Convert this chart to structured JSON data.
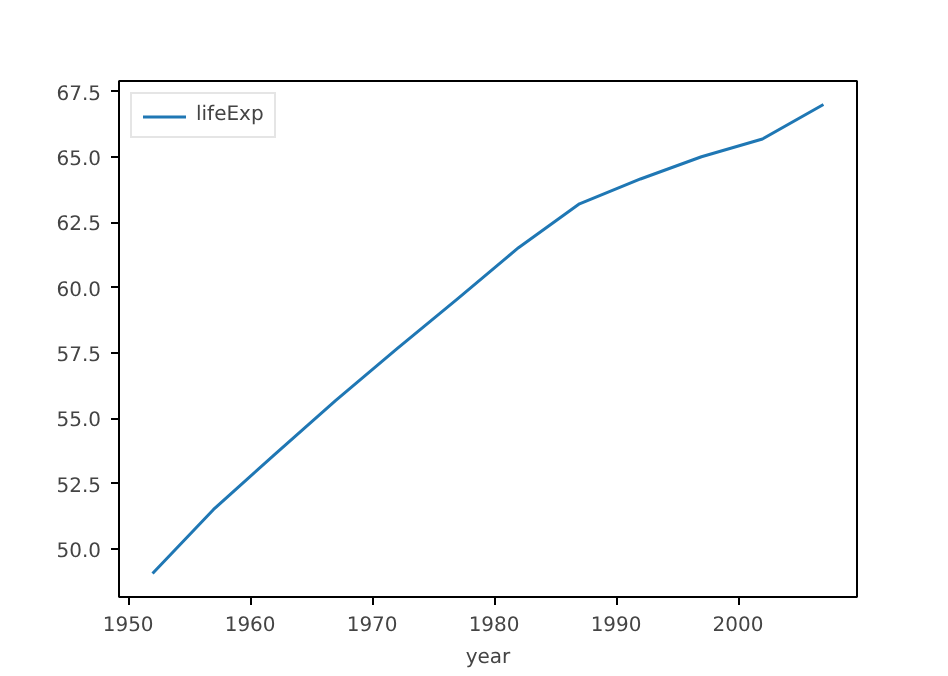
{
  "chart_data": {
    "type": "line",
    "xlabel": "year",
    "x": [
      1952,
      1957,
      1962,
      1967,
      1972,
      1977,
      1982,
      1987,
      1992,
      1997,
      2002,
      2007
    ],
    "series": [
      {
        "name": "lifeExp",
        "color": "#1f77b4",
        "values": [
          49.06,
          51.51,
          53.61,
          55.68,
          57.65,
          59.57,
          61.53,
          63.21,
          64.16,
          65.01,
          65.69,
          67.01
        ]
      }
    ],
    "xlim": [
      1949.25,
      2009.75
    ],
    "ylim": [
      48.16,
      67.91
    ],
    "xticks": [
      1950,
      1960,
      1970,
      1980,
      1990,
      2000
    ],
    "yticks": [
      {
        "value": 50,
        "label": "50.0"
      },
      {
        "value": 52.5,
        "label": "52.5"
      },
      {
        "value": 55,
        "label": "55.0"
      },
      {
        "value": 57.5,
        "label": "57.5"
      },
      {
        "value": 60,
        "label": "60.0"
      },
      {
        "value": 62.5,
        "label": "62.5"
      },
      {
        "value": 65,
        "label": "65.0"
      },
      {
        "value": 67.5,
        "label": "67.5"
      }
    ],
    "grid": false,
    "legend": "top left"
  }
}
